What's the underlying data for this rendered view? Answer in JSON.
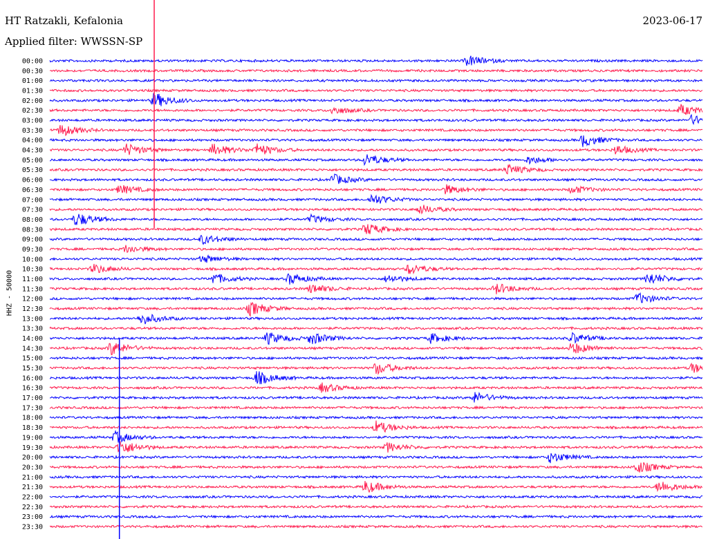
{
  "header": {
    "station": "HT Ratzakli, Kefalonia",
    "filter": "Applied filter: WWSSN-SP",
    "date": "2023-06-17"
  },
  "axis": {
    "ylabel": "HHZ - 50000"
  },
  "colors": {
    "line_a": "#0000ff",
    "line_b": "#ff1a4d",
    "background": "#ffffff"
  },
  "chart_data": {
    "type": "line",
    "title": "HT Ratzakli, Kefalonia",
    "subtitle": "Applied filter: WWSSN-SP",
    "ylabel": "HHZ - 50000",
    "xlabel": "",
    "grid": false,
    "legend": "none",
    "row_labels": [
      "00:00",
      "00:30",
      "01:00",
      "01:30",
      "02:00",
      "02:30",
      "03:00",
      "03:30",
      "04:00",
      "04:30",
      "05:00",
      "05:30",
      "06:00",
      "06:30",
      "07:00",
      "07:30",
      "08:00",
      "08:30",
      "09:00",
      "09:30",
      "10:00",
      "10:30",
      "11:00",
      "11:30",
      "12:00",
      "12:30",
      "13:00",
      "13:30",
      "14:00",
      "14:30",
      "15:00",
      "15:30",
      "16:00",
      "16:30",
      "17:00",
      "17:30",
      "18:00",
      "18:30",
      "19:00",
      "19:30",
      "20:00",
      "20:30",
      "21:00",
      "21:30",
      "22:00",
      "22:30",
      "23:00",
      "23:30"
    ],
    "row_colors": [
      "blue",
      "red",
      "blue",
      "red",
      "blue",
      "red",
      "blue",
      "red",
      "blue",
      "red",
      "blue",
      "red",
      "blue",
      "red",
      "blue",
      "red",
      "blue",
      "red",
      "blue",
      "red",
      "blue",
      "red",
      "blue",
      "red",
      "blue",
      "red",
      "blue",
      "red",
      "blue",
      "red",
      "blue",
      "red",
      "blue",
      "red",
      "blue",
      "red",
      "blue",
      "red",
      "blue",
      "red",
      "blue",
      "red",
      "blue",
      "red",
      "blue",
      "red",
      "blue",
      "red"
    ],
    "x_range_minutes": [
      0,
      30
    ],
    "events": [
      {
        "row": 0,
        "minute": 19.2,
        "strength": 0.7
      },
      {
        "row": 4,
        "minute": 4.8,
        "strength": 1.0
      },
      {
        "row": 5,
        "minute": 13.0,
        "strength": 0.5
      },
      {
        "row": 5,
        "minute": 29.0,
        "strength": 0.7
      },
      {
        "row": 6,
        "minute": 29.5,
        "strength": 0.6
      },
      {
        "row": 7,
        "minute": 0.5,
        "strength": 0.8
      },
      {
        "row": 8,
        "minute": 24.5,
        "strength": 0.8
      },
      {
        "row": 9,
        "minute": 3.5,
        "strength": 0.8
      },
      {
        "row": 9,
        "minute": 7.5,
        "strength": 0.8
      },
      {
        "row": 9,
        "minute": 9.5,
        "strength": 0.8
      },
      {
        "row": 9,
        "minute": 26.0,
        "strength": 0.6
      },
      {
        "row": 10,
        "minute": 14.5,
        "strength": 0.8
      },
      {
        "row": 10,
        "minute": 22.0,
        "strength": 0.5
      },
      {
        "row": 11,
        "minute": 21.0,
        "strength": 0.7
      },
      {
        "row": 12,
        "minute": 13.0,
        "strength": 0.7
      },
      {
        "row": 13,
        "minute": 3.2,
        "strength": 0.6
      },
      {
        "row": 13,
        "minute": 18.2,
        "strength": 0.6
      },
      {
        "row": 13,
        "minute": 24.0,
        "strength": 0.5
      },
      {
        "row": 14,
        "minute": 14.8,
        "strength": 0.7
      },
      {
        "row": 15,
        "minute": 17.0,
        "strength": 0.6
      },
      {
        "row": 16,
        "minute": 1.2,
        "strength": 0.9
      },
      {
        "row": 16,
        "minute": 12.0,
        "strength": 0.5
      },
      {
        "row": 17,
        "minute": 14.5,
        "strength": 0.8
      },
      {
        "row": 18,
        "minute": 7.0,
        "strength": 0.6
      },
      {
        "row": 19,
        "minute": 3.5,
        "strength": 0.5
      },
      {
        "row": 20,
        "minute": 7.0,
        "strength": 0.5
      },
      {
        "row": 21,
        "minute": 2.0,
        "strength": 0.6
      },
      {
        "row": 21,
        "minute": 16.5,
        "strength": 0.7
      },
      {
        "row": 22,
        "minute": 7.5,
        "strength": 0.7
      },
      {
        "row": 22,
        "minute": 11.0,
        "strength": 0.7
      },
      {
        "row": 22,
        "minute": 15.5,
        "strength": 0.5
      },
      {
        "row": 22,
        "minute": 27.5,
        "strength": 0.8
      },
      {
        "row": 23,
        "minute": 12.0,
        "strength": 0.6
      },
      {
        "row": 23,
        "minute": 20.5,
        "strength": 0.7
      },
      {
        "row": 24,
        "minute": 27.0,
        "strength": 0.7
      },
      {
        "row": 25,
        "minute": 9.2,
        "strength": 0.9
      },
      {
        "row": 26,
        "minute": 4.2,
        "strength": 0.8
      },
      {
        "row": 28,
        "minute": 10.0,
        "strength": 0.8
      },
      {
        "row": 28,
        "minute": 12.0,
        "strength": 0.8
      },
      {
        "row": 28,
        "minute": 17.5,
        "strength": 0.6
      },
      {
        "row": 28,
        "minute": 24.0,
        "strength": 0.7
      },
      {
        "row": 29,
        "minute": 2.8,
        "strength": 0.9
      },
      {
        "row": 29,
        "minute": 24.0,
        "strength": 0.8
      },
      {
        "row": 31,
        "minute": 15.0,
        "strength": 0.8
      },
      {
        "row": 31,
        "minute": 29.5,
        "strength": 0.6
      },
      {
        "row": 32,
        "minute": 9.5,
        "strength": 0.9
      },
      {
        "row": 33,
        "minute": 12.5,
        "strength": 0.6
      },
      {
        "row": 34,
        "minute": 19.5,
        "strength": 0.7
      },
      {
        "row": 37,
        "minute": 15.0,
        "strength": 0.8
      },
      {
        "row": 38,
        "minute": 3.0,
        "strength": 0.7
      },
      {
        "row": 39,
        "minute": 3.2,
        "strength": 1.0
      },
      {
        "row": 39,
        "minute": 15.5,
        "strength": 0.6
      },
      {
        "row": 40,
        "minute": 23.0,
        "strength": 0.7
      },
      {
        "row": 41,
        "minute": 27.0,
        "strength": 0.8
      },
      {
        "row": 43,
        "minute": 14.5,
        "strength": 0.8
      },
      {
        "row": 43,
        "minute": 28.0,
        "strength": 0.8
      }
    ]
  }
}
